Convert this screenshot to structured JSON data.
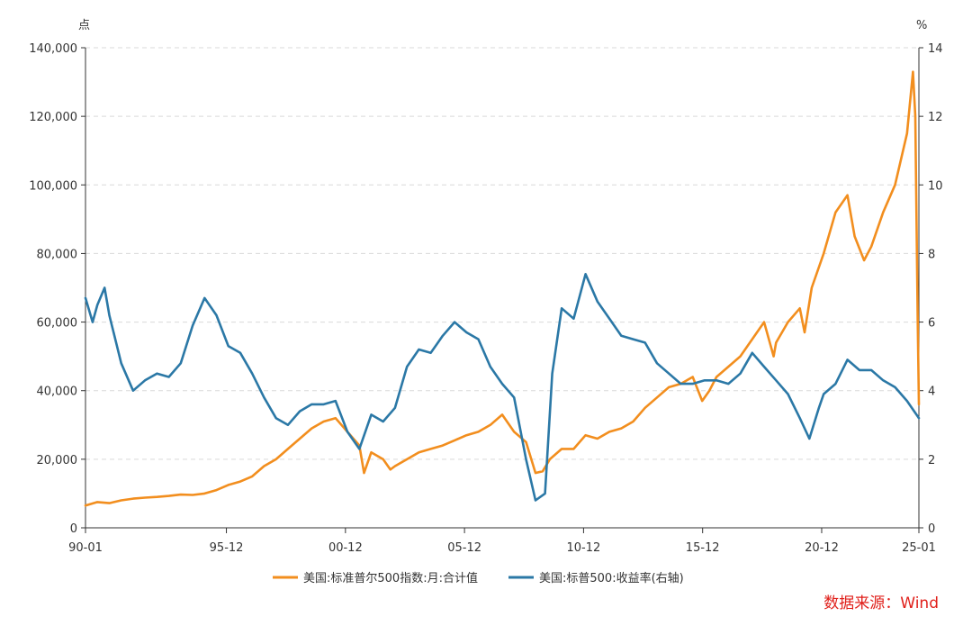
{
  "chart_data": {
    "type": "line",
    "left_axis": {
      "unit": "点",
      "ylim": [
        0,
        140000
      ],
      "ticks": [
        "0",
        "20,000",
        "40,000",
        "60,000",
        "80,000",
        "100,000",
        "120,000",
        "140,000"
      ]
    },
    "right_axis": {
      "unit": "%",
      "ylim": [
        0,
        14
      ],
      "ticks": [
        "0",
        "2",
        "4",
        "6",
        "8",
        "10",
        "12",
        "14"
      ]
    },
    "x_ticks": [
      {
        "label": "90-01",
        "t": 1990.0
      },
      {
        "label": "95-12",
        "t": 1995.917
      },
      {
        "label": "00-12",
        "t": 2000.917
      },
      {
        "label": "05-12",
        "t": 2005.917
      },
      {
        "label": "10-12",
        "t": 2010.917
      },
      {
        "label": "15-12",
        "t": 2015.917
      },
      {
        "label": "20-12",
        "t": 2020.917
      },
      {
        "label": "25-01",
        "t": 2025.0
      }
    ],
    "xlim": [
      1990.0,
      2025.0
    ],
    "grid": true,
    "legend_position": "bottom",
    "series": [
      {
        "name": "美国:标准普尔500指数:月:合计值",
        "axis": "left",
        "color": "#f28e1e",
        "points": [
          [
            1990.0,
            6500
          ],
          [
            1990.5,
            7500
          ],
          [
            1991.0,
            7200
          ],
          [
            1991.5,
            8000
          ],
          [
            1992.0,
            8500
          ],
          [
            1992.5,
            8800
          ],
          [
            1993.0,
            9000
          ],
          [
            1993.5,
            9300
          ],
          [
            1994.0,
            9700
          ],
          [
            1994.5,
            9600
          ],
          [
            1995.0,
            10000
          ],
          [
            1995.5,
            11000
          ],
          [
            1996.0,
            12500
          ],
          [
            1996.5,
            13500
          ],
          [
            1997.0,
            15000
          ],
          [
            1997.5,
            18000
          ],
          [
            1998.0,
            20000
          ],
          [
            1998.5,
            23000
          ],
          [
            1999.0,
            26000
          ],
          [
            1999.5,
            29000
          ],
          [
            2000.0,
            31000
          ],
          [
            2000.5,
            32000
          ],
          [
            2001.0,
            28000
          ],
          [
            2001.5,
            24000
          ],
          [
            2001.7,
            16000
          ],
          [
            2002.0,
            22000
          ],
          [
            2002.5,
            20000
          ],
          [
            2002.8,
            17000
          ],
          [
            2003.0,
            18000
          ],
          [
            2003.5,
            20000
          ],
          [
            2004.0,
            22000
          ],
          [
            2004.5,
            23000
          ],
          [
            2005.0,
            24000
          ],
          [
            2005.5,
            25500
          ],
          [
            2006.0,
            27000
          ],
          [
            2006.5,
            28000
          ],
          [
            2007.0,
            30000
          ],
          [
            2007.5,
            33000
          ],
          [
            2008.0,
            28000
          ],
          [
            2008.5,
            25000
          ],
          [
            2008.9,
            16000
          ],
          [
            2009.2,
            16500
          ],
          [
            2009.5,
            20000
          ],
          [
            2010.0,
            23000
          ],
          [
            2010.5,
            23000
          ],
          [
            2011.0,
            27000
          ],
          [
            2011.5,
            26000
          ],
          [
            2012.0,
            28000
          ],
          [
            2012.5,
            29000
          ],
          [
            2013.0,
            31000
          ],
          [
            2013.5,
            35000
          ],
          [
            2014.0,
            38000
          ],
          [
            2014.5,
            41000
          ],
          [
            2015.0,
            42000
          ],
          [
            2015.5,
            44000
          ],
          [
            2015.9,
            37000
          ],
          [
            2016.2,
            40000
          ],
          [
            2016.5,
            44000
          ],
          [
            2017.0,
            47000
          ],
          [
            2017.5,
            50000
          ],
          [
            2018.0,
            55000
          ],
          [
            2018.5,
            60000
          ],
          [
            2018.9,
            50000
          ],
          [
            2019.0,
            54000
          ],
          [
            2019.5,
            60000
          ],
          [
            2020.0,
            64000
          ],
          [
            2020.2,
            57000
          ],
          [
            2020.5,
            70000
          ],
          [
            2021.0,
            80000
          ],
          [
            2021.5,
            92000
          ],
          [
            2022.0,
            97000
          ],
          [
            2022.3,
            85000
          ],
          [
            2022.7,
            78000
          ],
          [
            2023.0,
            82000
          ],
          [
            2023.5,
            92000
          ],
          [
            2024.0,
            100000
          ],
          [
            2024.5,
            115000
          ],
          [
            2024.75,
            133000
          ],
          [
            2024.85,
            120000
          ],
          [
            2024.95,
            60000
          ],
          [
            2025.0,
            36000
          ]
        ]
      },
      {
        "name": "美国:标普500:收益率(右轴)",
        "axis": "right",
        "color": "#2b78a6",
        "points": [
          [
            1990.0,
            6.7
          ],
          [
            1990.3,
            6.0
          ],
          [
            1990.5,
            6.5
          ],
          [
            1990.8,
            7.0
          ],
          [
            1991.0,
            6.2
          ],
          [
            1991.5,
            4.8
          ],
          [
            1992.0,
            4.0
          ],
          [
            1992.5,
            4.3
          ],
          [
            1993.0,
            4.5
          ],
          [
            1993.5,
            4.4
          ],
          [
            1994.0,
            4.8
          ],
          [
            1994.5,
            5.9
          ],
          [
            1995.0,
            6.7
          ],
          [
            1995.5,
            6.2
          ],
          [
            1996.0,
            5.3
          ],
          [
            1996.5,
            5.1
          ],
          [
            1997.0,
            4.5
          ],
          [
            1997.5,
            3.8
          ],
          [
            1998.0,
            3.2
          ],
          [
            1998.5,
            3.0
          ],
          [
            1999.0,
            3.4
          ],
          [
            1999.5,
            3.6
          ],
          [
            2000.0,
            3.6
          ],
          [
            2000.5,
            3.7
          ],
          [
            2001.0,
            2.8
          ],
          [
            2001.5,
            2.3
          ],
          [
            2002.0,
            3.3
          ],
          [
            2002.5,
            3.1
          ],
          [
            2003.0,
            3.5
          ],
          [
            2003.5,
            4.7
          ],
          [
            2004.0,
            5.2
          ],
          [
            2004.5,
            5.1
          ],
          [
            2005.0,
            5.6
          ],
          [
            2005.5,
            6.0
          ],
          [
            2006.0,
            5.7
          ],
          [
            2006.5,
            5.5
          ],
          [
            2007.0,
            4.7
          ],
          [
            2007.5,
            4.2
          ],
          [
            2008.0,
            3.8
          ],
          [
            2008.5,
            2.0
          ],
          [
            2008.9,
            0.8
          ],
          [
            2009.3,
            1.0
          ],
          [
            2009.6,
            4.5
          ],
          [
            2010.0,
            6.4
          ],
          [
            2010.5,
            6.1
          ],
          [
            2011.0,
            7.4
          ],
          [
            2011.5,
            6.6
          ],
          [
            2012.0,
            6.1
          ],
          [
            2012.5,
            5.6
          ],
          [
            2013.0,
            5.5
          ],
          [
            2013.5,
            5.4
          ],
          [
            2014.0,
            4.8
          ],
          [
            2014.5,
            4.5
          ],
          [
            2015.0,
            4.2
          ],
          [
            2015.5,
            4.2
          ],
          [
            2016.0,
            4.3
          ],
          [
            2016.5,
            4.3
          ],
          [
            2017.0,
            4.2
          ],
          [
            2017.5,
            4.5
          ],
          [
            2018.0,
            5.1
          ],
          [
            2018.5,
            4.7
          ],
          [
            2019.0,
            4.3
          ],
          [
            2019.5,
            3.9
          ],
          [
            2020.0,
            3.2
          ],
          [
            2020.4,
            2.6
          ],
          [
            2020.8,
            3.5
          ],
          [
            2021.0,
            3.9
          ],
          [
            2021.5,
            4.2
          ],
          [
            2022.0,
            4.9
          ],
          [
            2022.5,
            4.6
          ],
          [
            2023.0,
            4.6
          ],
          [
            2023.5,
            4.3
          ],
          [
            2024.0,
            4.1
          ],
          [
            2024.5,
            3.7
          ],
          [
            2025.0,
            3.2
          ]
        ]
      }
    ]
  },
  "source": "数据来源：Wind"
}
